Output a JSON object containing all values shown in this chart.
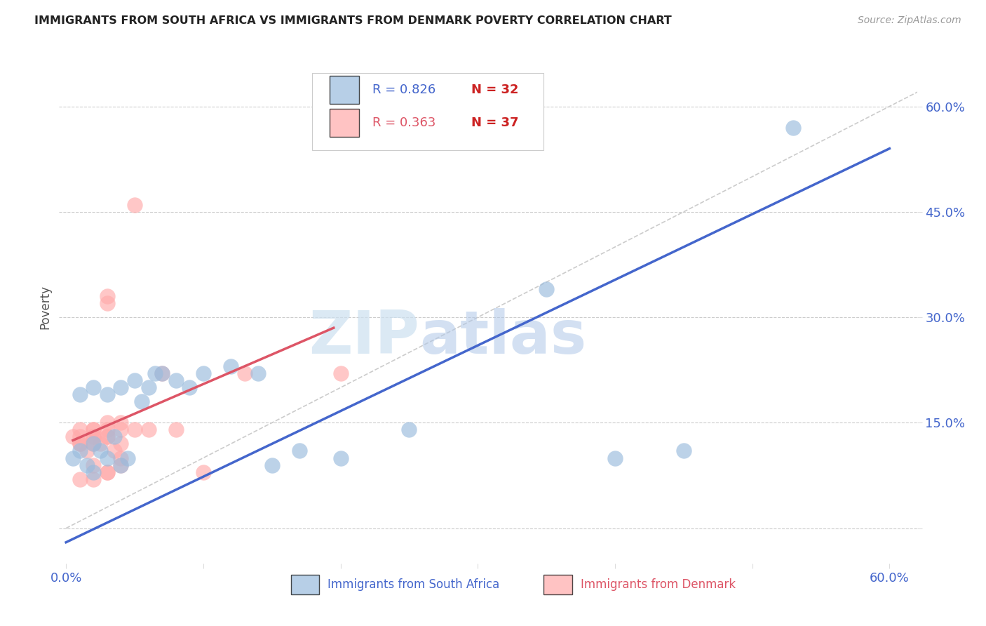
{
  "title": "IMMIGRANTS FROM SOUTH AFRICA VS IMMIGRANTS FROM DENMARK POVERTY CORRELATION CHART",
  "source": "Source: ZipAtlas.com",
  "ylabel": "Poverty",
  "xlim": [
    -0.005,
    0.62
  ],
  "ylim": [
    -0.05,
    0.68
  ],
  "yticks": [
    0.0,
    0.15,
    0.3,
    0.45,
    0.6
  ],
  "ytick_labels": [
    "",
    "15.0%",
    "30.0%",
    "45.0%",
    "60.0%"
  ],
  "xticks": [
    0.0,
    0.1,
    0.2,
    0.3,
    0.4,
    0.5,
    0.6
  ],
  "watermark_zip": "ZIP",
  "watermark_atlas": "atlas",
  "legend_blue_r": "R = 0.826",
  "legend_blue_n": "N = 32",
  "legend_pink_r": "R = 0.363",
  "legend_pink_n": "N = 37",
  "blue_color": "#99BBDD",
  "pink_color": "#FFAAAA",
  "blue_line_color": "#4466CC",
  "pink_line_color": "#DD5566",
  "diagonal_color": "#CCCCCC",
  "blue_scatter_x": [
    0.005,
    0.01,
    0.015,
    0.02,
    0.025,
    0.03,
    0.035,
    0.04,
    0.045,
    0.01,
    0.02,
    0.03,
    0.04,
    0.05,
    0.055,
    0.06,
    0.065,
    0.07,
    0.08,
    0.09,
    0.1,
    0.12,
    0.14,
    0.15,
    0.17,
    0.2,
    0.25,
    0.35,
    0.4,
    0.45,
    0.53,
    0.02
  ],
  "blue_scatter_y": [
    0.1,
    0.11,
    0.09,
    0.12,
    0.11,
    0.1,
    0.13,
    0.09,
    0.1,
    0.19,
    0.2,
    0.19,
    0.2,
    0.21,
    0.18,
    0.2,
    0.22,
    0.22,
    0.21,
    0.2,
    0.22,
    0.23,
    0.22,
    0.09,
    0.11,
    0.1,
    0.14,
    0.34,
    0.1,
    0.11,
    0.57,
    0.08
  ],
  "pink_scatter_x": [
    0.005,
    0.01,
    0.015,
    0.02,
    0.025,
    0.03,
    0.035,
    0.04,
    0.01,
    0.02,
    0.03,
    0.01,
    0.02,
    0.03,
    0.04,
    0.05,
    0.03,
    0.02,
    0.04,
    0.03,
    0.02,
    0.01,
    0.03,
    0.05,
    0.06,
    0.07,
    0.08,
    0.1,
    0.13,
    0.2,
    0.04,
    0.03,
    0.04,
    0.02,
    0.03,
    0.01,
    0.02
  ],
  "pink_scatter_y": [
    0.13,
    0.12,
    0.11,
    0.13,
    0.12,
    0.14,
    0.11,
    0.12,
    0.14,
    0.13,
    0.15,
    0.12,
    0.14,
    0.13,
    0.15,
    0.14,
    0.13,
    0.12,
    0.14,
    0.33,
    0.14,
    0.13,
    0.32,
    0.46,
    0.14,
    0.22,
    0.14,
    0.08,
    0.22,
    0.22,
    0.1,
    0.08,
    0.09,
    0.07,
    0.08,
    0.07,
    0.09
  ],
  "blue_line_x0": 0.0,
  "blue_line_x1": 0.6,
  "blue_line_y0": -0.02,
  "blue_line_y1": 0.54,
  "pink_line_x0": 0.005,
  "pink_line_x1": 0.195,
  "pink_line_y0": 0.125,
  "pink_line_y1": 0.285
}
